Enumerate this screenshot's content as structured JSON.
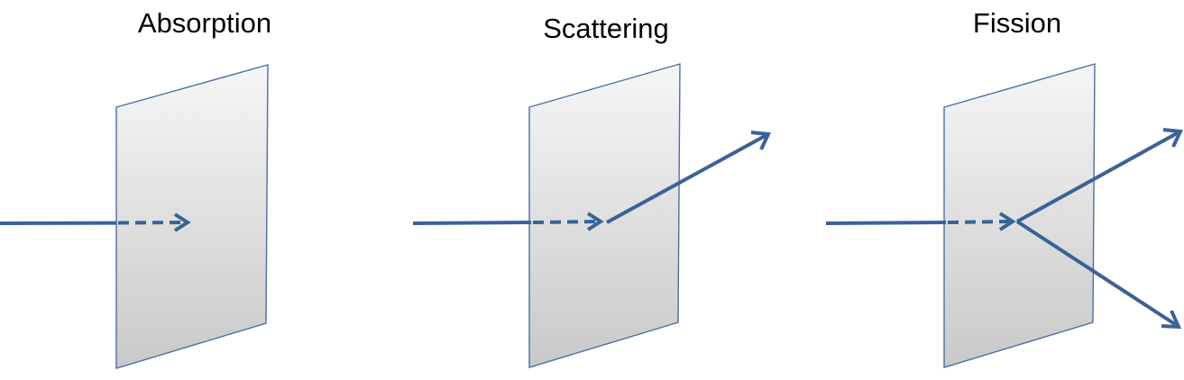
{
  "colors": {
    "arrow": "#3a6298",
    "plate_stroke": "#4a6fa5",
    "plate_fill_top": "#f6f6f6",
    "plate_fill_bottom": "#c9c9c9",
    "text": "#000000"
  },
  "panels": [
    {
      "id": "absorption",
      "title": "Absorption",
      "outgoing_rays": 0
    },
    {
      "id": "scattering",
      "title": "Scattering",
      "outgoing_rays": 1
    },
    {
      "id": "fission",
      "title": "Fission",
      "outgoing_rays": 2
    }
  ]
}
